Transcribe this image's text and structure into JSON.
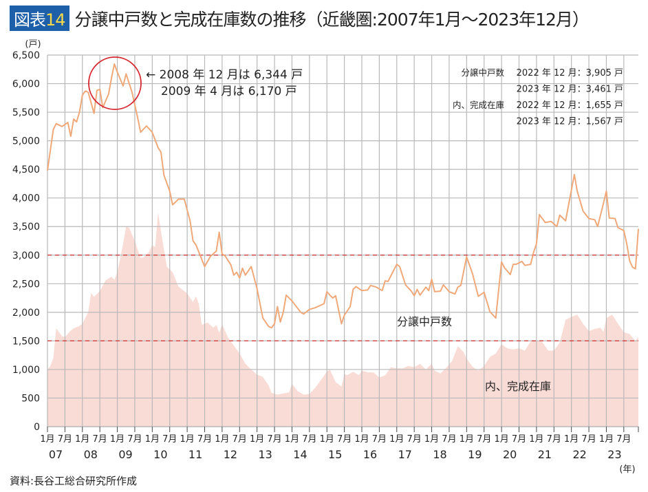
{
  "title": {
    "badge_label": "図表",
    "badge_number": "14",
    "text": "分譲中戸数と完成在庫数の推移（近畿圏:2007年1月～2023年12月）"
  },
  "source": "資料:長谷工総合研究所作成",
  "chart_data": {
    "type": "line+area",
    "ylabel": "(戸)",
    "xlabel": "(年)",
    "ylim": [
      0,
      6500
    ],
    "yticks": [
      "0",
      "500",
      "1,000",
      "1,500",
      "2,000",
      "2,500",
      "3,000",
      "3,500",
      "4,000",
      "4,500",
      "5,000",
      "5,500",
      "6,000",
      "6,500"
    ],
    "ytick_values": [
      0,
      500,
      1000,
      1500,
      2000,
      2500,
      3000,
      3500,
      4000,
      4500,
      5000,
      5500,
      6000,
      6500
    ],
    "xtick_month_labels": [
      "1月",
      "7月"
    ],
    "xtick_year_labels": [
      "07",
      "08",
      "09",
      "10",
      "11",
      "12",
      "13",
      "14",
      "15",
      "16",
      "17",
      "18",
      "19",
      "20",
      "21",
      "22",
      "23"
    ],
    "reference_lines": [
      3000,
      1500
    ],
    "grid": true,
    "colors": {
      "line": "#f0a878",
      "area": "#fadcd6",
      "ref": "#d03030",
      "circle": "#d62630",
      "grid": "#b8b8b8"
    },
    "series": [
      {
        "name": "分譲中戸数",
        "type": "line",
        "points": [
          [
            "2007-01",
            4480
          ],
          [
            "2007-03",
            5200
          ],
          [
            "2007-04",
            5300
          ],
          [
            "2007-06",
            5250
          ],
          [
            "2007-08",
            5320
          ],
          [
            "2007-09",
            5080
          ],
          [
            "2007-10",
            5380
          ],
          [
            "2007-11",
            5330
          ],
          [
            "2007-12",
            5500
          ],
          [
            "2008-01",
            5800
          ],
          [
            "2008-02",
            5870
          ],
          [
            "2008-03",
            5850
          ],
          [
            "2008-05",
            5480
          ],
          [
            "2008-06",
            5880
          ],
          [
            "2008-07",
            5900
          ],
          [
            "2008-08",
            5580
          ],
          [
            "2008-10",
            5820
          ],
          [
            "2008-11",
            6100
          ],
          [
            "2008-12",
            6344
          ],
          [
            "2009-01",
            6200
          ],
          [
            "2009-03",
            5960
          ],
          [
            "2009-04",
            6170
          ],
          [
            "2009-06",
            5860
          ],
          [
            "2009-08",
            5400
          ],
          [
            "2009-09",
            5150
          ],
          [
            "2009-11",
            5260
          ],
          [
            "2010-01",
            5150
          ],
          [
            "2010-03",
            4880
          ],
          [
            "2010-04",
            4800
          ],
          [
            "2010-05",
            4400
          ],
          [
            "2010-07",
            4120
          ],
          [
            "2010-08",
            3880
          ],
          [
            "2010-10",
            3980
          ],
          [
            "2010-12",
            3980
          ],
          [
            "2011-02",
            3600
          ],
          [
            "2011-03",
            3250
          ],
          [
            "2011-04",
            3180
          ],
          [
            "2011-07",
            2800
          ],
          [
            "2011-09",
            2980
          ],
          [
            "2011-11",
            3070
          ],
          [
            "2011-12",
            3400
          ],
          [
            "2012-01",
            3020
          ],
          [
            "2012-02",
            2990
          ],
          [
            "2012-04",
            2830
          ],
          [
            "2012-05",
            2650
          ],
          [
            "2012-06",
            2700
          ],
          [
            "2012-07",
            2600
          ],
          [
            "2012-08",
            2770
          ],
          [
            "2012-09",
            2650
          ],
          [
            "2012-11",
            2800
          ],
          [
            "2013-01",
            2410
          ],
          [
            "2013-03",
            1900
          ],
          [
            "2013-05",
            1750
          ],
          [
            "2013-06",
            1730
          ],
          [
            "2013-07",
            1800
          ],
          [
            "2013-08",
            2100
          ],
          [
            "2013-09",
            1830
          ],
          [
            "2013-10",
            2000
          ],
          [
            "2013-11",
            2300
          ],
          [
            "2014-01",
            2200
          ],
          [
            "2014-04",
            2000
          ],
          [
            "2014-05",
            1970
          ],
          [
            "2014-07",
            2050
          ],
          [
            "2014-09",
            2080
          ],
          [
            "2014-12",
            2150
          ],
          [
            "2015-01",
            2360
          ],
          [
            "2015-02",
            2300
          ],
          [
            "2015-03",
            2250
          ],
          [
            "2015-04",
            2290
          ],
          [
            "2015-06",
            1800
          ],
          [
            "2015-07",
            1950
          ],
          [
            "2015-09",
            2100
          ],
          [
            "2015-10",
            2400
          ],
          [
            "2015-11",
            2450
          ],
          [
            "2016-01",
            2380
          ],
          [
            "2016-03",
            2390
          ],
          [
            "2016-04",
            2470
          ],
          [
            "2016-06",
            2440
          ],
          [
            "2016-08",
            2380
          ],
          [
            "2016-09",
            2550
          ],
          [
            "2016-10",
            2540
          ],
          [
            "2017-01",
            2840
          ],
          [
            "2017-02",
            2800
          ],
          [
            "2017-04",
            2480
          ],
          [
            "2017-06",
            2370
          ],
          [
            "2017-07",
            2290
          ],
          [
            "2017-08",
            2400
          ],
          [
            "2017-09",
            2300
          ],
          [
            "2017-11",
            2440
          ],
          [
            "2017-12",
            2380
          ],
          [
            "2018-01",
            2580
          ],
          [
            "2018-02",
            2360
          ],
          [
            "2018-04",
            2370
          ],
          [
            "2018-05",
            2480
          ],
          [
            "2018-07",
            2360
          ],
          [
            "2018-09",
            2320
          ],
          [
            "2018-10",
            2440
          ],
          [
            "2018-11",
            2470
          ],
          [
            "2019-01",
            2970
          ],
          [
            "2019-03",
            2680
          ],
          [
            "2019-05",
            2280
          ],
          [
            "2019-07",
            2350
          ],
          [
            "2019-09",
            2010
          ],
          [
            "2019-11",
            1900
          ],
          [
            "2020-01",
            2880
          ],
          [
            "2020-02",
            2780
          ],
          [
            "2020-04",
            2660
          ],
          [
            "2020-05",
            2840
          ],
          [
            "2020-06",
            2840
          ],
          [
            "2020-08",
            2890
          ],
          [
            "2020-09",
            2820
          ],
          [
            "2020-11",
            2840
          ],
          [
            "2020-12",
            3050
          ],
          [
            "2021-01",
            3200
          ],
          [
            "2021-02",
            3710
          ],
          [
            "2021-04",
            3570
          ],
          [
            "2021-06",
            3590
          ],
          [
            "2021-08",
            3500
          ],
          [
            "2021-09",
            3700
          ],
          [
            "2021-11",
            3600
          ],
          [
            "2022-02",
            4410
          ],
          [
            "2022-03",
            4120
          ],
          [
            "2022-05",
            3770
          ],
          [
            "2022-07",
            3640
          ],
          [
            "2022-09",
            3620
          ],
          [
            "2022-10",
            3500
          ],
          [
            "2022-12",
            3905
          ],
          [
            "2023-01",
            4120
          ],
          [
            "2023-02",
            3650
          ],
          [
            "2023-04",
            3640
          ],
          [
            "2023-05",
            3480
          ],
          [
            "2023-07",
            3430
          ],
          [
            "2023-08",
            3200
          ],
          [
            "2023-09",
            2900
          ],
          [
            "2023-10",
            2790
          ],
          [
            "2023-11",
            2760
          ],
          [
            "2023-12",
            3461
          ]
        ]
      },
      {
        "name": "内、完成在庫",
        "type": "area",
        "points": [
          [
            "2007-01",
            1000
          ],
          [
            "2007-02",
            1060
          ],
          [
            "2007-03",
            1200
          ],
          [
            "2007-04",
            1720
          ],
          [
            "2007-05",
            1650
          ],
          [
            "2007-06",
            1580
          ],
          [
            "2007-07",
            1570
          ],
          [
            "2007-09",
            1680
          ],
          [
            "2007-10",
            1720
          ],
          [
            "2007-12",
            1760
          ],
          [
            "2008-01",
            1800
          ],
          [
            "2008-03",
            2000
          ],
          [
            "2008-04",
            2340
          ],
          [
            "2008-05",
            2270
          ],
          [
            "2008-07",
            2370
          ],
          [
            "2008-09",
            2560
          ],
          [
            "2008-11",
            2620
          ],
          [
            "2008-12",
            2570
          ],
          [
            "2009-01",
            2700
          ],
          [
            "2009-03",
            3200
          ],
          [
            "2009-04",
            3500
          ],
          [
            "2009-05",
            3480
          ],
          [
            "2009-07",
            3250
          ],
          [
            "2009-09",
            2950
          ],
          [
            "2009-10",
            2960
          ],
          [
            "2009-12",
            3060
          ],
          [
            "2010-01",
            3180
          ],
          [
            "2010-02",
            3140
          ],
          [
            "2010-03",
            3740
          ],
          [
            "2010-05",
            3100
          ],
          [
            "2010-06",
            2800
          ],
          [
            "2010-08",
            2700
          ],
          [
            "2010-10",
            2450
          ],
          [
            "2011-01",
            2330
          ],
          [
            "2011-03",
            2180
          ],
          [
            "2011-04",
            2280
          ],
          [
            "2011-05",
            2150
          ],
          [
            "2011-06",
            1780
          ],
          [
            "2011-08",
            1820
          ],
          [
            "2011-10",
            1730
          ],
          [
            "2011-11",
            1780
          ],
          [
            "2011-12",
            1640
          ],
          [
            "2012-01",
            1790
          ],
          [
            "2012-03",
            1560
          ],
          [
            "2012-05",
            1420
          ],
          [
            "2012-07",
            1280
          ],
          [
            "2012-09",
            1100
          ],
          [
            "2012-11",
            1000
          ],
          [
            "2013-01",
            910
          ],
          [
            "2013-03",
            870
          ],
          [
            "2013-05",
            720
          ],
          [
            "2013-06",
            590
          ],
          [
            "2013-08",
            560
          ],
          [
            "2013-10",
            580
          ],
          [
            "2013-12",
            600
          ],
          [
            "2014-01",
            750
          ],
          [
            "2014-03",
            620
          ],
          [
            "2014-05",
            560
          ],
          [
            "2014-07",
            570
          ],
          [
            "2014-09",
            680
          ],
          [
            "2015-01",
            960
          ],
          [
            "2015-02",
            1000
          ],
          [
            "2015-04",
            780
          ],
          [
            "2015-06",
            700
          ],
          [
            "2015-07",
            920
          ],
          [
            "2015-08",
            900
          ],
          [
            "2015-10",
            960
          ],
          [
            "2015-12",
            900
          ],
          [
            "2016-01",
            980
          ],
          [
            "2016-03",
            950
          ],
          [
            "2016-05",
            950
          ],
          [
            "2016-07",
            860
          ],
          [
            "2016-09",
            900
          ],
          [
            "2016-11",
            1040
          ],
          [
            "2017-01",
            1020
          ],
          [
            "2017-03",
            1020
          ],
          [
            "2017-05",
            1060
          ],
          [
            "2017-07",
            1040
          ],
          [
            "2017-09",
            1100
          ],
          [
            "2017-11",
            1000
          ],
          [
            "2018-01",
            1100
          ],
          [
            "2018-02",
            980
          ],
          [
            "2018-04",
            930
          ],
          [
            "2018-06",
            1030
          ],
          [
            "2018-08",
            1150
          ],
          [
            "2018-10",
            1410
          ],
          [
            "2018-12",
            1300
          ],
          [
            "2019-01",
            1190
          ],
          [
            "2019-03",
            1050
          ],
          [
            "2019-05",
            980
          ],
          [
            "2019-07",
            1060
          ],
          [
            "2019-09",
            1220
          ],
          [
            "2019-11",
            1280
          ],
          [
            "2020-01",
            1440
          ],
          [
            "2020-03",
            1370
          ],
          [
            "2020-05",
            1350
          ],
          [
            "2020-07",
            1370
          ],
          [
            "2020-09",
            1330
          ],
          [
            "2020-11",
            1490
          ],
          [
            "2021-01",
            1500
          ],
          [
            "2021-03",
            1480
          ],
          [
            "2021-05",
            1330
          ],
          [
            "2021-07",
            1330
          ],
          [
            "2021-09",
            1470
          ],
          [
            "2021-11",
            1870
          ],
          [
            "2022-01",
            1920
          ],
          [
            "2022-03",
            1960
          ],
          [
            "2022-05",
            1800
          ],
          [
            "2022-07",
            1670
          ],
          [
            "2022-09",
            1710
          ],
          [
            "2022-11",
            1730
          ],
          [
            "2022-12",
            1655
          ],
          [
            "2023-01",
            1900
          ],
          [
            "2023-03",
            1960
          ],
          [
            "2023-05",
            1800
          ],
          [
            "2023-07",
            1650
          ],
          [
            "2023-09",
            1620
          ],
          [
            "2023-11",
            1500
          ],
          [
            "2023-12",
            1567
          ]
        ]
      }
    ],
    "series_labels": {
      "line": "分譲中戸数",
      "area": "内、完成在庫"
    },
    "annotations": {
      "peak_line1": "← 2008 年 12 月は 6,344 戸",
      "peak_line2": "2009 年 4 月は 6,170 戸",
      "box": [
        {
          "label": "分譲中戸数",
          "value": "2022 年 12 月：3,905 戸"
        },
        {
          "label": "",
          "value": "2023 年 12 月：3,461 戸"
        },
        {
          "label": "内、完成在庫",
          "value": "2022 年 12 月：1,655 戸"
        },
        {
          "label": "",
          "value": "2023 年 12 月：1,567 戸"
        }
      ]
    }
  }
}
